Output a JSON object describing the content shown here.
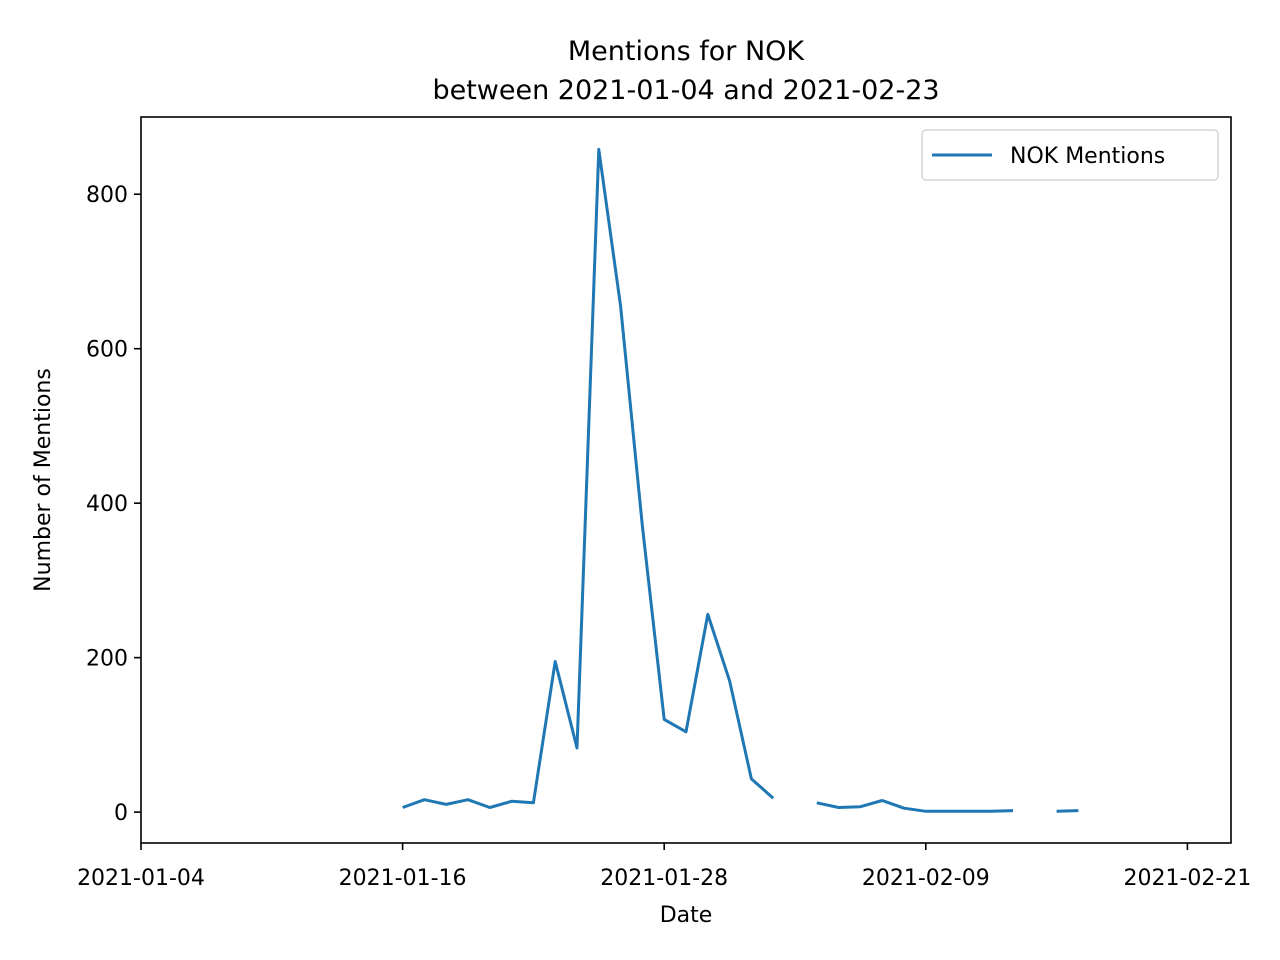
{
  "chart_data": {
    "type": "line",
    "title": "Mentions for NOK",
    "subtitle": "between 2021-01-04 and 2021-02-23",
    "xlabel": "Date",
    "ylabel": "Number of Mentions",
    "xlim": [
      "2021-01-04",
      "2021-02-23"
    ],
    "ylim": [
      -40,
      900
    ],
    "x_ticks": [
      "2021-01-04",
      "2021-01-16",
      "2021-01-28",
      "2021-02-09",
      "2021-02-21"
    ],
    "y_ticks": [
      0,
      200,
      400,
      600,
      800
    ],
    "grid": false,
    "legend_position": "top-right",
    "series": [
      {
        "name": "NOK Mentions",
        "color": "#1f77b4",
        "points": [
          {
            "date": "2021-01-16",
            "value": 6
          },
          {
            "date": "2021-01-17",
            "value": 16
          },
          {
            "date": "2021-01-18",
            "value": 10
          },
          {
            "date": "2021-01-19",
            "value": 16
          },
          {
            "date": "2021-01-20",
            "value": 6
          },
          {
            "date": "2021-01-21",
            "value": 14
          },
          {
            "date": "2021-01-22",
            "value": 12
          },
          {
            "date": "2021-01-23",
            "value": 195
          },
          {
            "date": "2021-01-24",
            "value": 83
          },
          {
            "date": "2021-01-25",
            "value": 858
          },
          {
            "date": "2021-01-26",
            "value": 655
          },
          {
            "date": "2021-01-27",
            "value": 370
          },
          {
            "date": "2021-01-28",
            "value": 120
          },
          {
            "date": "2021-01-29",
            "value": 104
          },
          {
            "date": "2021-01-30",
            "value": 256
          },
          {
            "date": "2021-01-31",
            "value": 170
          },
          {
            "date": "2021-02-01",
            "value": 43
          },
          {
            "date": "2021-02-02",
            "value": 18
          },
          {
            "date": "2021-02-03",
            "value": null
          },
          {
            "date": "2021-02-04",
            "value": 12
          },
          {
            "date": "2021-02-05",
            "value": 6
          },
          {
            "date": "2021-02-06",
            "value": 7
          },
          {
            "date": "2021-02-07",
            "value": 15
          },
          {
            "date": "2021-02-08",
            "value": 5
          },
          {
            "date": "2021-02-09",
            "value": 1
          },
          {
            "date": "2021-02-10",
            "value": 1
          },
          {
            "date": "2021-02-11",
            "value": 1
          },
          {
            "date": "2021-02-12",
            "value": 1
          },
          {
            "date": "2021-02-13",
            "value": 2
          },
          {
            "date": "2021-02-14",
            "value": null
          },
          {
            "date": "2021-02-15",
            "value": 1
          },
          {
            "date": "2021-02-16",
            "value": 2
          }
        ]
      }
    ]
  }
}
